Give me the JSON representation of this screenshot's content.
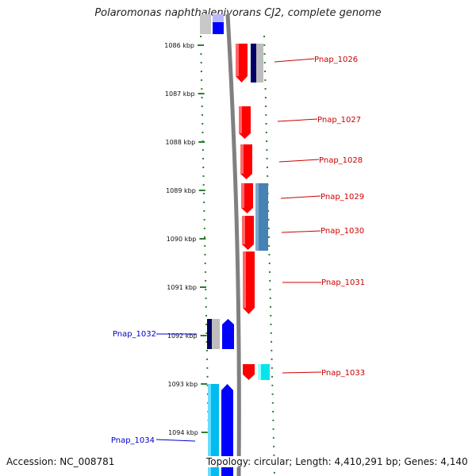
{
  "title": "Polaromonas naphthalenivorans CJ2, complete genome",
  "accession_label": "Accession: NC_008781",
  "topology_label": "Topology: circular; Length: 4,410,291 bp; Genes: 4,140",
  "colors": {
    "forward_gene": "#ff0000",
    "reverse_gene": "#0000ff",
    "dark_navy": "#000066",
    "steel_blue": "#4682b4",
    "cyan": "#00ccee",
    "label_forward": "#cc0000",
    "label_reverse": "#0000cc",
    "ruler": "#2e7d32",
    "backbone": "#808080"
  },
  "ruler": {
    "unit": "kbp",
    "ticks": [
      "1086 kbp",
      "1087 kbp",
      "1088 kbp",
      "1089 kbp",
      "1090 kbp",
      "1091 kbp",
      "1092 kbp",
      "1093 kbp",
      "1094 kbp"
    ]
  },
  "genes": [
    {
      "label": "Pnap_1026",
      "strand": "+"
    },
    {
      "label": "Pnap_1027",
      "strand": "+"
    },
    {
      "label": "Pnap_1028",
      "strand": "+"
    },
    {
      "label": "Pnap_1029",
      "strand": "+"
    },
    {
      "label": "Pnap_1030",
      "strand": "+"
    },
    {
      "label": "Pnap_1031",
      "strand": "+"
    },
    {
      "label": "Pnap_1032",
      "strand": "-"
    },
    {
      "label": "Pnap_1033",
      "strand": "+"
    },
    {
      "label": "Pnap_1034",
      "strand": "-"
    }
  ]
}
